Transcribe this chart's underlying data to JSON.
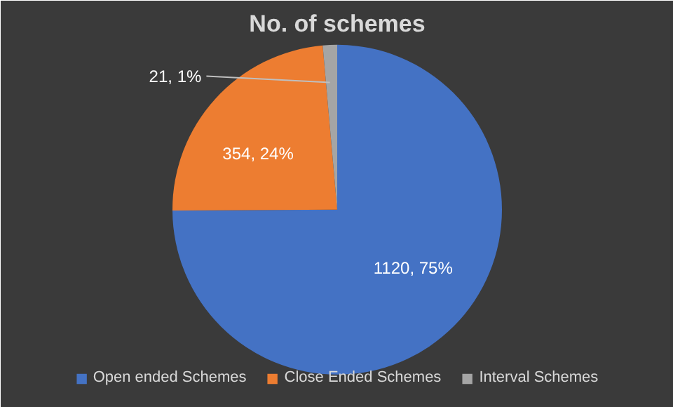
{
  "chart_data": {
    "type": "pie",
    "title": "No. of schemes",
    "categories": [
      "Open ended Schemes",
      "Close Ended Schemes",
      "Interval Schemes"
    ],
    "values": [
      1120,
      354,
      21
    ],
    "colors": [
      "#4472c4",
      "#ed7d31",
      "#a5a5a5"
    ],
    "value_labels": [
      "1120, 75%",
      "354, 24%",
      "21, 1%"
    ],
    "legend": "bottom"
  }
}
